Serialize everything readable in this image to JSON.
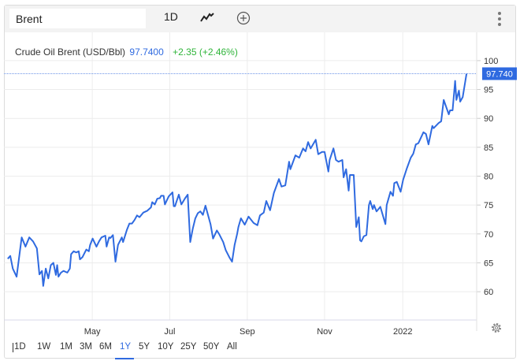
{
  "toolbar": {
    "search_value": "Brent",
    "interval_label": "1D",
    "chart_type_icon": "line-chart-icon",
    "add_icon": "plus-circle-icon",
    "menu_icon": "kebab-menu-icon"
  },
  "legend": {
    "name": "Crude Oil Brent (USD/Bbl)",
    "price": "97.7400",
    "change": "+2.35 (+2.46%)"
  },
  "last_price_label": "97.740",
  "ranges": [
    "1D",
    "1W",
    "1M",
    "3M",
    "6M",
    "1Y",
    "5Y",
    "10Y",
    "25Y",
    "50Y",
    "All"
  ],
  "active_range": "1Y",
  "colors": {
    "line": "#2f6ae0",
    "positive": "#2fb43a",
    "accent": "#2f6ae0"
  },
  "chart_data": {
    "type": "line",
    "title": "Crude Oil Brent (USD/Bbl)",
    "xlabel": "",
    "ylabel": "",
    "x_unit": "days since start of 1Y window",
    "xlim": [
      -3,
      370
    ],
    "ylim": [
      55.1,
      104.9
    ],
    "yticks": [
      60,
      65,
      70,
      75,
      80,
      85,
      90,
      95,
      100
    ],
    "xticks": [
      {
        "label": "May",
        "x": 66.7
      },
      {
        "label": "Jul",
        "x": 127.8
      },
      {
        "label": "Sep",
        "x": 189
      },
      {
        "label": "Nov",
        "x": 250
      },
      {
        "label": "2022",
        "x": 311.7
      }
    ],
    "grid": true,
    "series": [
      {
        "name": "Brent",
        "x": [
          0,
          2,
          4,
          7,
          11,
          14,
          17,
          20,
          23,
          25,
          27,
          28,
          30,
          32,
          34,
          36,
          38,
          39,
          40,
          42,
          44,
          47,
          49,
          50,
          52,
          54,
          56,
          57,
          59,
          62,
          64,
          65,
          67,
          70,
          72,
          74,
          77,
          78,
          80,
          81,
          83,
          85,
          87,
          90,
          91,
          94,
          96,
          98,
          100,
          102,
          104,
          107,
          109,
          110,
          113,
          114,
          116,
          118,
          120,
          121,
          123,
          124,
          127,
          130,
          131,
          132,
          133,
          135,
          137,
          140,
          142,
          144,
          146,
          148,
          150,
          152,
          154,
          156,
          158,
          160,
          162,
          165,
          167,
          170,
          172,
          175,
          177,
          179,
          181,
          182,
          184,
          187,
          190,
          194,
          197,
          199,
          202,
          204,
          207,
          210,
          214,
          216,
          219,
          222,
          223,
          227,
          230,
          233,
          235,
          237,
          239,
          243,
          245,
          248,
          250,
          253,
          254,
          257,
          259,
          261,
          264,
          265,
          267,
          269,
          270,
          273,
          275,
          277,
          278,
          279,
          281,
          283,
          285,
          286,
          288,
          289,
          291,
          294,
          298,
          299,
          302,
          304,
          305,
          307,
          310,
          312,
          315,
          318,
          320,
          322,
          324,
          328,
          330,
          332,
          335,
          336,
          340,
          342,
          344,
          348,
          349,
          351,
          353,
          354,
          356,
          357,
          359,
          362
        ],
        "values": [
          65.7,
          66.2,
          64.0,
          62.6,
          69.4,
          67.8,
          69.4,
          68.7,
          67.5,
          63.0,
          63.6,
          61.0,
          64.0,
          62.3,
          64.6,
          65.0,
          62.9,
          64.6,
          62.6,
          63.3,
          63.6,
          63.3,
          64.0,
          66.5,
          67.0,
          66.8,
          67.0,
          65.6,
          66.0,
          67.3,
          67.0,
          68.1,
          69.2,
          67.8,
          68.7,
          69.4,
          69.7,
          67.8,
          69.4,
          69.3,
          69.8,
          65.2,
          68.1,
          69.4,
          68.6,
          70.7,
          71.8,
          71.8,
          72.4,
          73.2,
          72.9,
          73.7,
          73.9,
          74.0,
          74.6,
          75.5,
          75.1,
          76.1,
          76.2,
          76.6,
          76.6,
          75.1,
          76.5,
          77.2,
          74.8,
          74.8,
          75.5,
          76.8,
          75.1,
          76.2,
          76.8,
          68.6,
          70.9,
          72.7,
          73.6,
          73.9,
          73.3,
          74.9,
          73.3,
          71.7,
          69.2,
          70.6,
          69.9,
          68.6,
          67.2,
          65.9,
          65.2,
          68.1,
          70.0,
          71.2,
          72.7,
          71.6,
          73.0,
          71.9,
          71.5,
          73.2,
          73.7,
          75.7,
          74.1,
          77.1,
          79.5,
          78.2,
          78.4,
          82.5,
          81.2,
          83.6,
          83.2,
          84.8,
          84.3,
          85.9,
          84.8,
          86.3,
          83.8,
          84.2,
          84.2,
          80.8,
          82.8,
          84.8,
          82.8,
          82.5,
          82.8,
          79.8,
          81.2,
          77.5,
          80.2,
          80.2,
          71.2,
          72.9,
          68.9,
          68.7,
          69.6,
          69.8,
          75.0,
          75.7,
          74.3,
          75.0,
          73.9,
          74.7,
          71.7,
          75.0,
          77.3,
          76.6,
          78.8,
          79.0,
          77.3,
          79.4,
          81.4,
          83.2,
          83.9,
          85.5,
          85.7,
          87.6,
          87.3,
          85.5,
          88.7,
          88.3,
          89.2,
          89.5,
          93.2,
          90.7,
          91.4,
          91.4,
          96.5,
          93.2,
          94.8,
          92.9,
          93.7,
          97.74
        ]
      }
    ]
  }
}
